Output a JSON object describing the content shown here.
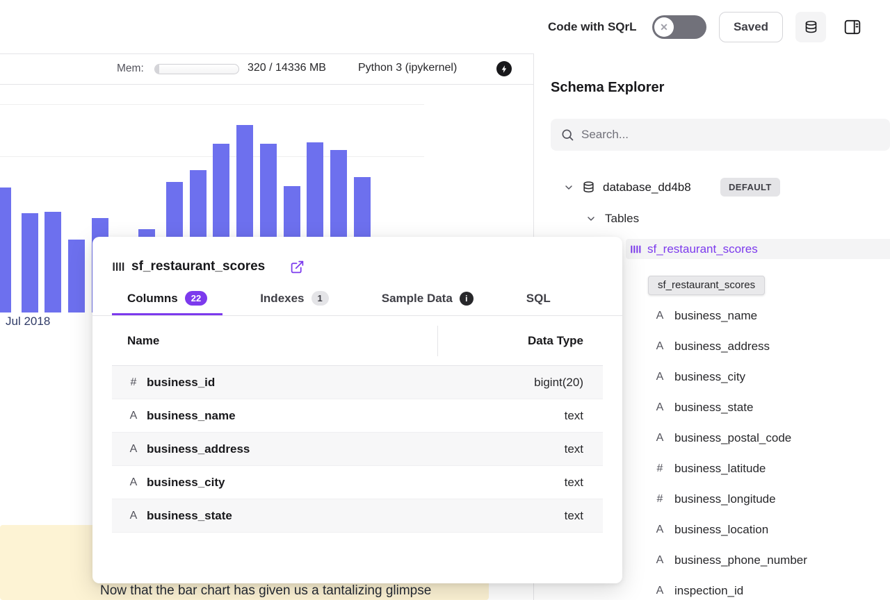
{
  "topbar": {
    "sqrl_label": "Code with SQrL",
    "sqrl_toggle_state": "off",
    "saved_button": "Saved"
  },
  "kernel_bar": {
    "mem_label": "Mem:",
    "mem_text": "320 / 14336 MB",
    "mem_used_mb": 320,
    "mem_total_mb": 14336,
    "kernel_name": "Python 3 (ipykernel)"
  },
  "chart_data": {
    "type": "bar",
    "title": "",
    "xlabel": "",
    "ylabel": "",
    "x_tick_labels": [
      "Jul 2018"
    ],
    "values": [
      180,
      143,
      145,
      105,
      136,
      105,
      120,
      188,
      205,
      243,
      270,
      243,
      182,
      245,
      234,
      195
    ],
    "bar_color": "#6d70ee",
    "grid": true,
    "legend": false
  },
  "markdown_cell": {
    "text_fragment": "Now that the bar chart has given us a tantalizing glimpse",
    "background_color": "#fdf3d4"
  },
  "popover": {
    "title": "sf_restaurant_scores",
    "tabs": [
      {
        "label": "Columns",
        "badge": "22",
        "active": true
      },
      {
        "label": "Indexes",
        "badge": "1",
        "active": false
      },
      {
        "label": "Sample Data",
        "info_icon": true,
        "active": false
      },
      {
        "label": "SQL",
        "active": false
      }
    ],
    "table": {
      "name_header": "Name",
      "type_header": "Data Type",
      "rows": [
        {
          "icon": "#",
          "name": "business_id",
          "data_type": "bigint(20)"
        },
        {
          "icon": "A",
          "name": "business_name",
          "data_type": "text"
        },
        {
          "icon": "A",
          "name": "business_address",
          "data_type": "text"
        },
        {
          "icon": "A",
          "name": "business_city",
          "data_type": "text"
        },
        {
          "icon": "A",
          "name": "business_state",
          "data_type": "text"
        }
      ]
    }
  },
  "schema_panel": {
    "title": "Schema Explorer",
    "search_placeholder": "Search...",
    "database_name": "database_dd4b8",
    "database_badge": "DEFAULT",
    "tables_label": "Tables",
    "selected_table": "sf_restaurant_scores",
    "tooltip_text": "sf_restaurant_scores",
    "columns": [
      {
        "icon": "#",
        "name": "business_id"
      },
      {
        "icon": "A",
        "name": "business_name"
      },
      {
        "icon": "A",
        "name": "business_address"
      },
      {
        "icon": "A",
        "name": "business_city"
      },
      {
        "icon": "A",
        "name": "business_state"
      },
      {
        "icon": "A",
        "name": "business_postal_code"
      },
      {
        "icon": "#",
        "name": "business_latitude"
      },
      {
        "icon": "#",
        "name": "business_longitude"
      },
      {
        "icon": "A",
        "name": "business_location"
      },
      {
        "icon": "A",
        "name": "business_phone_number"
      },
      {
        "icon": "A",
        "name": "inspection_id"
      }
    ]
  },
  "icons": {
    "toggle_x": "✕",
    "info": "i"
  },
  "colors": {
    "accent_purple": "#7c3aed",
    "bar_blue": "#6d70ee",
    "callout_yellow": "#fdf3d4"
  }
}
